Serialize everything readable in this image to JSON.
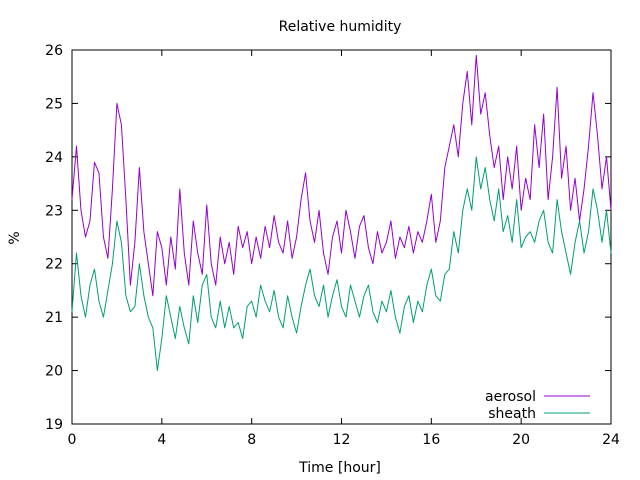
{
  "chart_data": {
    "type": "line",
    "title": "Relative humidity",
    "xlabel": "Time [hour]",
    "ylabel": "%",
    "xlim": [
      0,
      24
    ],
    "ylim": [
      19,
      26
    ],
    "xticks": [
      0,
      4,
      8,
      12,
      16,
      20,
      24
    ],
    "yticks": [
      19,
      20,
      21,
      22,
      23,
      24,
      25,
      26
    ],
    "grid": false,
    "legend": "bottom-right",
    "series": [
      {
        "name": "aerosol",
        "color": "#9400d3",
        "x": [
          0,
          0.2,
          0.4,
          0.6,
          0.8,
          1.0,
          1.2,
          1.4,
          1.6,
          1.8,
          2.0,
          2.2,
          2.4,
          2.6,
          2.8,
          3.0,
          3.2,
          3.4,
          3.6,
          3.8,
          4.0,
          4.2,
          4.4,
          4.6,
          4.8,
          5.0,
          5.2,
          5.4,
          5.6,
          5.8,
          6.0,
          6.2,
          6.4,
          6.6,
          6.8,
          7.0,
          7.2,
          7.4,
          7.6,
          7.8,
          8.0,
          8.2,
          8.4,
          8.6,
          8.8,
          9.0,
          9.2,
          9.4,
          9.6,
          9.8,
          10.0,
          10.2,
          10.4,
          10.6,
          10.8,
          11.0,
          11.2,
          11.4,
          11.6,
          11.8,
          12.0,
          12.2,
          12.4,
          12.6,
          12.8,
          13.0,
          13.2,
          13.4,
          13.6,
          13.8,
          14.0,
          14.2,
          14.4,
          14.6,
          14.8,
          15.0,
          15.2,
          15.4,
          15.6,
          15.8,
          16.0,
          16.2,
          16.4,
          16.6,
          16.8,
          17.0,
          17.2,
          17.4,
          17.6,
          17.8,
          18.0,
          18.2,
          18.4,
          18.6,
          18.8,
          19.0,
          19.2,
          19.4,
          19.6,
          19.8,
          20.0,
          20.2,
          20.4,
          20.6,
          20.8,
          21.0,
          21.2,
          21.4,
          21.6,
          21.8,
          22.0,
          22.2,
          22.4,
          22.6,
          22.8,
          23.0,
          23.2,
          23.4,
          23.6,
          23.8,
          24.0
        ],
        "values": [
          23.2,
          24.2,
          23.0,
          22.5,
          22.8,
          23.9,
          23.7,
          22.5,
          22.1,
          23.4,
          25.0,
          24.6,
          23.2,
          21.6,
          22.4,
          23.8,
          22.6,
          22.0,
          21.4,
          22.6,
          22.3,
          21.6,
          22.5,
          21.9,
          23.4,
          22.2,
          21.6,
          22.8,
          22.2,
          21.8,
          23.1,
          22.0,
          21.6,
          22.5,
          22.0,
          22.4,
          21.8,
          22.7,
          22.3,
          22.6,
          22.0,
          22.5,
          22.1,
          22.7,
          22.3,
          22.9,
          22.4,
          22.2,
          22.8,
          22.1,
          22.5,
          23.2,
          23.7,
          22.8,
          22.4,
          23.0,
          22.2,
          21.8,
          22.5,
          22.8,
          22.2,
          23.0,
          22.6,
          22.1,
          22.7,
          22.9,
          22.3,
          22.0,
          22.6,
          22.2,
          22.4,
          22.8,
          22.1,
          22.5,
          22.3,
          22.7,
          22.2,
          22.6,
          22.4,
          22.8,
          23.3,
          22.4,
          22.8,
          23.8,
          24.2,
          24.6,
          24.0,
          25.0,
          25.6,
          24.6,
          25.9,
          24.8,
          25.2,
          24.4,
          23.8,
          24.2,
          23.2,
          24.0,
          23.4,
          24.2,
          23.0,
          23.6,
          23.2,
          24.6,
          23.8,
          24.8,
          23.2,
          24.0,
          25.3,
          23.6,
          24.2,
          23.0,
          23.6,
          22.8,
          23.4,
          24.2,
          25.2,
          24.4,
          23.4,
          24.0,
          23.0
        ],
        "annotations": []
      },
      {
        "name": "sheath",
        "color": "#009e73",
        "x": [
          0,
          0.2,
          0.4,
          0.6,
          0.8,
          1.0,
          1.2,
          1.4,
          1.6,
          1.8,
          2.0,
          2.2,
          2.4,
          2.6,
          2.8,
          3.0,
          3.2,
          3.4,
          3.6,
          3.8,
          4.0,
          4.2,
          4.4,
          4.6,
          4.8,
          5.0,
          5.2,
          5.4,
          5.6,
          5.8,
          6.0,
          6.2,
          6.4,
          6.6,
          6.8,
          7.0,
          7.2,
          7.4,
          7.6,
          7.8,
          8.0,
          8.2,
          8.4,
          8.6,
          8.8,
          9.0,
          9.2,
          9.4,
          9.6,
          9.8,
          10.0,
          10.2,
          10.4,
          10.6,
          10.8,
          11.0,
          11.2,
          11.4,
          11.6,
          11.8,
          12.0,
          12.2,
          12.4,
          12.6,
          12.8,
          13.0,
          13.2,
          13.4,
          13.6,
          13.8,
          14.0,
          14.2,
          14.4,
          14.6,
          14.8,
          15.0,
          15.2,
          15.4,
          15.6,
          15.8,
          16.0,
          16.2,
          16.4,
          16.6,
          16.8,
          17.0,
          17.2,
          17.4,
          17.6,
          17.8,
          18.0,
          18.2,
          18.4,
          18.6,
          18.8,
          19.0,
          19.2,
          19.4,
          19.6,
          19.8,
          20.0,
          20.2,
          20.4,
          20.6,
          20.8,
          21.0,
          21.2,
          21.4,
          21.6,
          21.8,
          22.0,
          22.2,
          22.4,
          22.6,
          22.8,
          23.0,
          23.2,
          23.4,
          23.6,
          23.8,
          24.0
        ],
        "values": [
          21.1,
          22.2,
          21.4,
          21.0,
          21.6,
          21.9,
          21.3,
          21.0,
          21.5,
          22.0,
          22.8,
          22.4,
          21.4,
          21.1,
          21.2,
          22.0,
          21.4,
          21.0,
          20.8,
          20.0,
          20.6,
          21.4,
          21.0,
          20.6,
          21.2,
          20.8,
          20.5,
          21.4,
          20.9,
          21.6,
          21.8,
          21.0,
          20.8,
          21.3,
          20.8,
          21.2,
          20.8,
          20.9,
          20.6,
          21.2,
          21.3,
          21.0,
          21.6,
          21.3,
          21.1,
          21.5,
          21.0,
          20.8,
          21.4,
          21.0,
          20.7,
          21.2,
          21.6,
          21.9,
          21.4,
          21.2,
          21.6,
          21.0,
          21.4,
          21.7,
          21.2,
          21.0,
          21.6,
          21.3,
          21.0,
          21.4,
          21.6,
          21.1,
          20.9,
          21.3,
          21.1,
          21.5,
          21.0,
          20.7,
          21.2,
          21.4,
          20.9,
          21.3,
          21.1,
          21.6,
          21.9,
          21.4,
          21.3,
          21.8,
          21.9,
          22.6,
          22.2,
          23.0,
          23.4,
          23.0,
          24.0,
          23.4,
          23.8,
          23.2,
          22.8,
          23.4,
          22.6,
          22.9,
          22.4,
          23.2,
          22.3,
          22.5,
          22.6,
          22.4,
          22.8,
          23.0,
          22.4,
          22.2,
          23.2,
          22.6,
          22.2,
          21.8,
          22.4,
          22.8,
          22.2,
          22.6,
          23.4,
          23.0,
          22.4,
          23.0,
          22.2
        ],
        "annotations": []
      }
    ]
  }
}
